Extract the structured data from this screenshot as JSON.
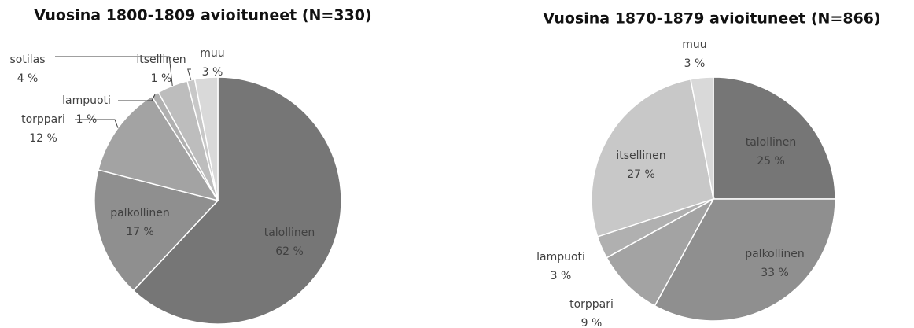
{
  "chart_data": [
    {
      "type": "pie",
      "title": "Vuosina 1800-1809 avioituneet (N=330)",
      "categories": [
        "talollinen",
        "palkollinen",
        "torppari",
        "lampuoti",
        "sotilas",
        "itsellinen",
        "muu"
      ],
      "values": [
        62,
        17,
        12,
        1,
        4,
        1,
        3
      ],
      "value_labels": [
        "62 %",
        "17 %",
        "12 %",
        "1 %",
        "4 %",
        "1 %",
        "3 %"
      ],
      "colors": [
        "#767676",
        "#8f8f8f",
        "#a3a3a3",
        "#b0b0b0",
        "#bdbdbd",
        "#c8c8c8",
        "#d9d9d9"
      ]
    },
    {
      "type": "pie",
      "title": "Vuosina 1870-1879 avioituneet (N=866)",
      "categories": [
        "talollinen",
        "palkollinen",
        "torppari",
        "lampuoti",
        "itsellinen",
        "muu"
      ],
      "values": [
        25,
        33,
        9,
        3,
        27,
        3
      ],
      "value_labels": [
        "25 %",
        "33 %",
        "9 %",
        "3 %",
        "27 %",
        "3 %"
      ],
      "colors": [
        "#767676",
        "#8f8f8f",
        "#a3a3a3",
        "#b0b0b0",
        "#c8c8c8",
        "#d9d9d9"
      ]
    }
  ]
}
